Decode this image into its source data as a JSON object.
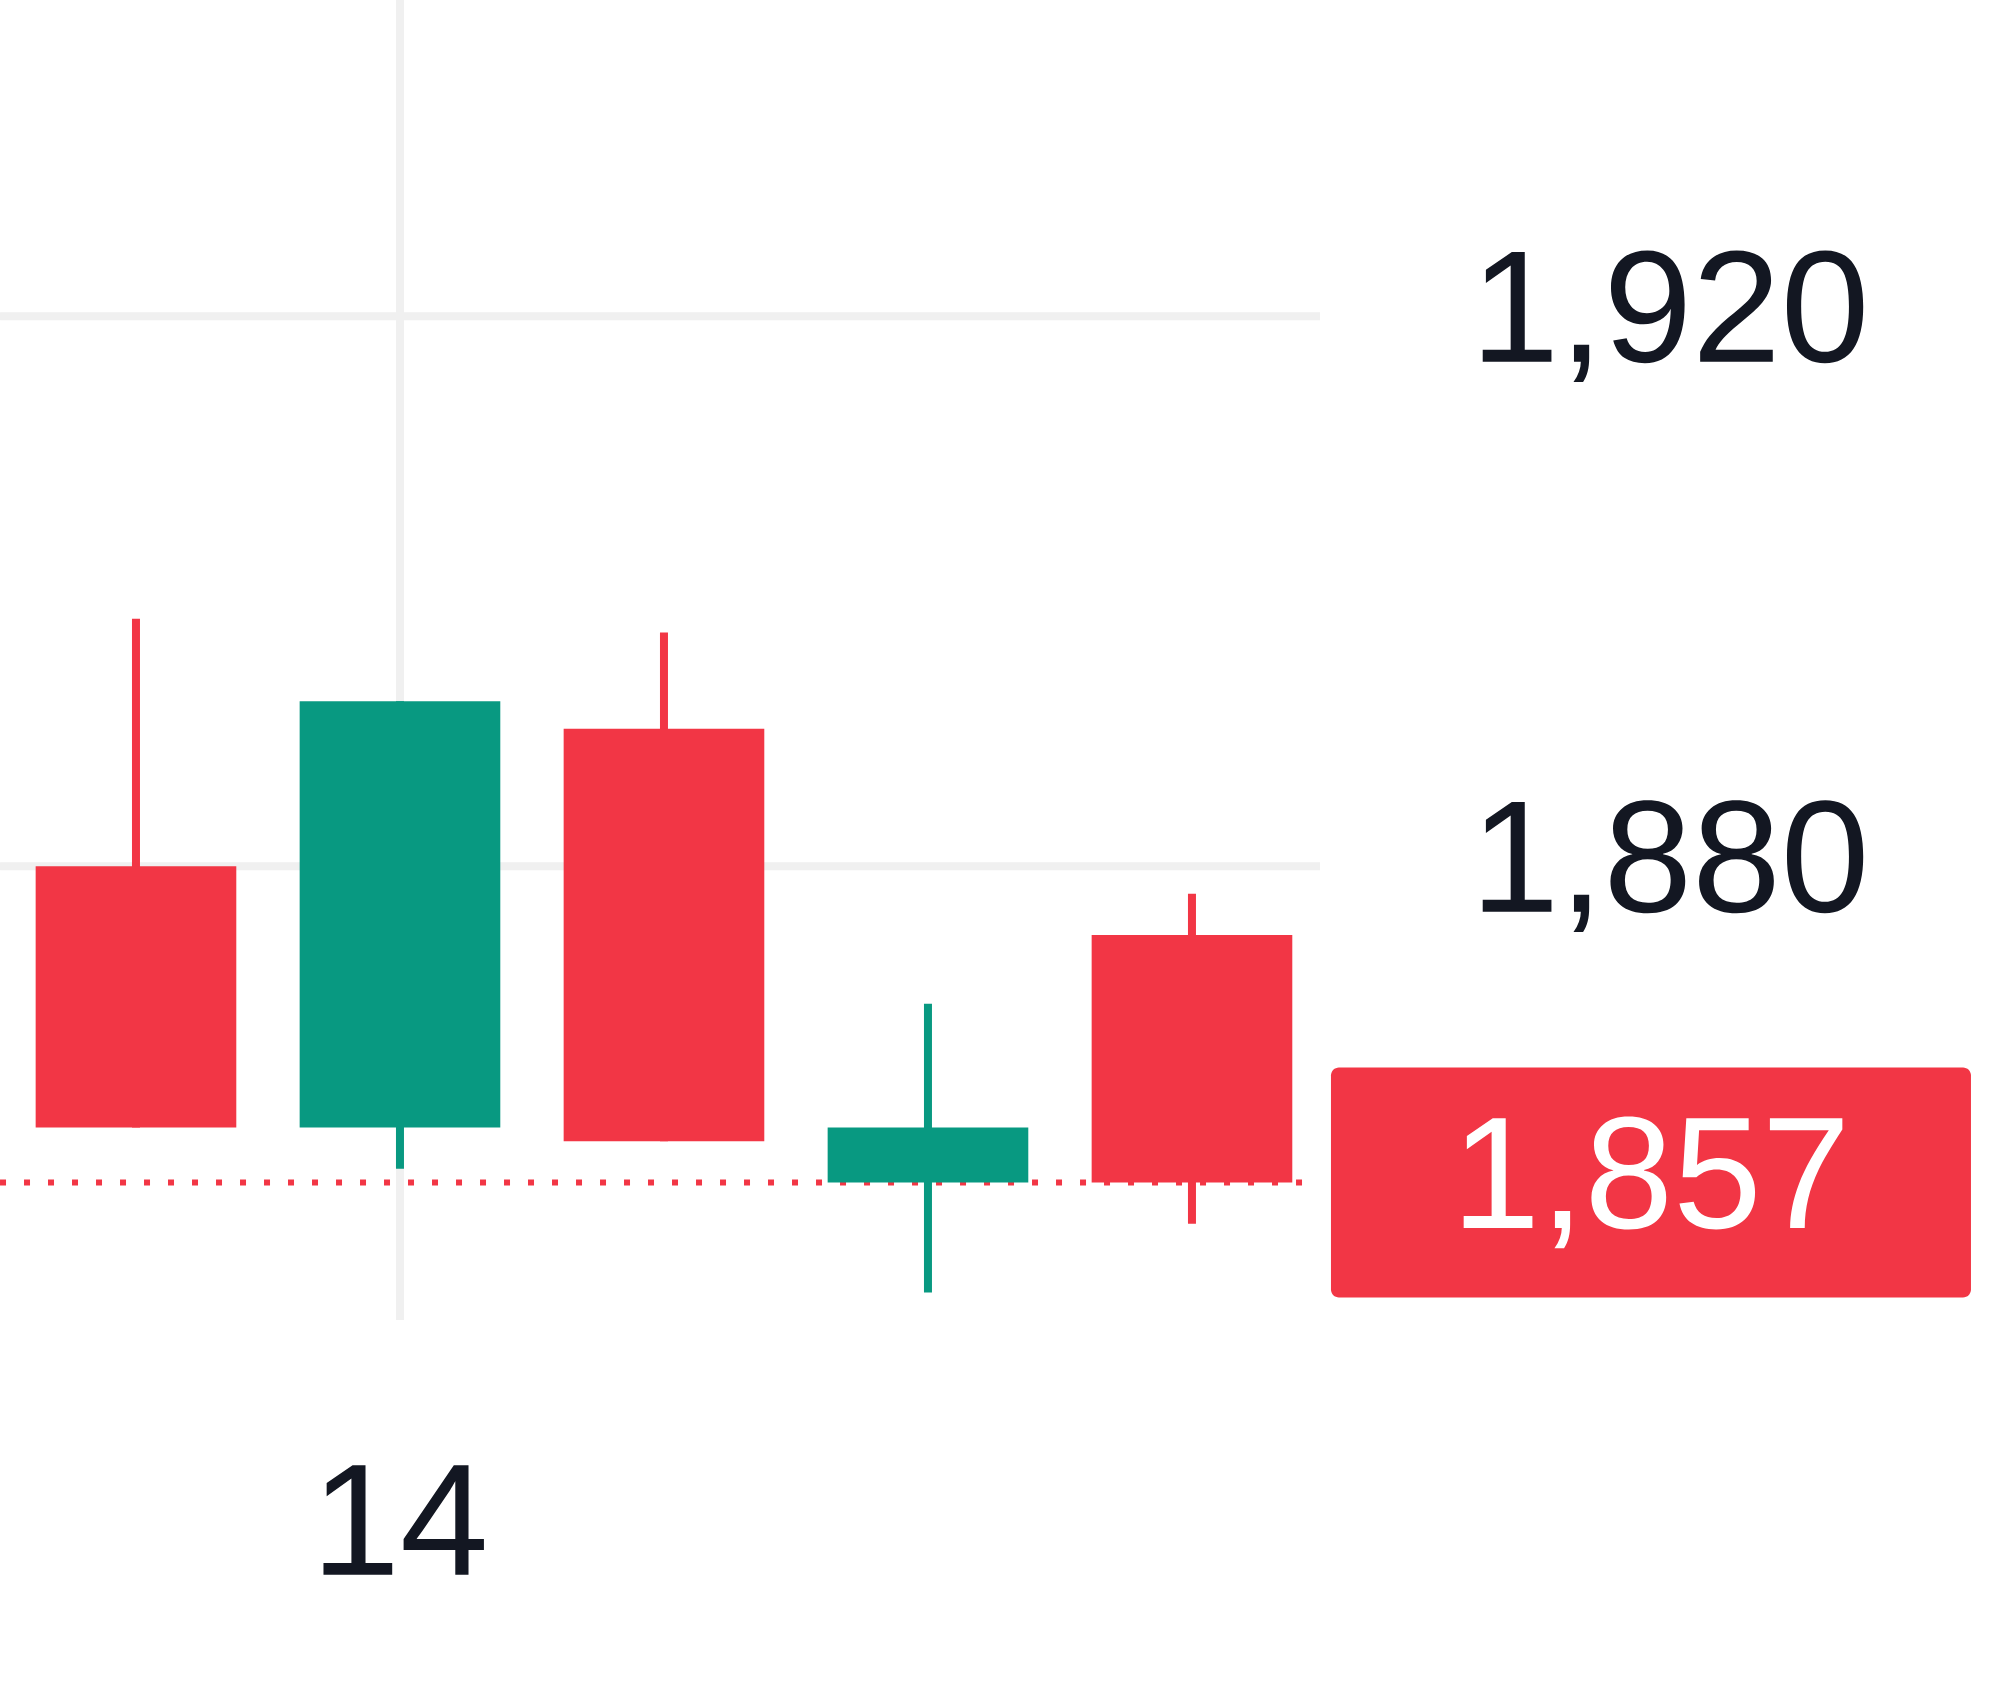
{
  "chart_data": {
    "type": "candlestick",
    "categories": [
      null,
      "14",
      null,
      null,
      null
    ],
    "ohlc": [
      [
        1880,
        1898,
        1861,
        1861
      ],
      [
        1861,
        1892,
        1858,
        1892
      ],
      [
        1890,
        1897,
        1860,
        1860
      ],
      [
        1857,
        1870,
        1849,
        1861
      ],
      [
        1875,
        1878,
        1854,
        1857
      ]
    ],
    "colors": [
      "#f23645",
      "#089981",
      "#f23645",
      "#089981",
      "#f23645"
    ],
    "ylim": [
      1847,
      1943
    ],
    "yticks": [
      {
        "value": 1880,
        "label": "1,880"
      },
      {
        "value": 1920,
        "label": "1,920"
      }
    ],
    "grid": true,
    "ref_lines": [
      {
        "axis": "y",
        "value": 1857,
        "label": "1,857",
        "color": "#f23645",
        "line_style": "dotted"
      }
    ]
  }
}
